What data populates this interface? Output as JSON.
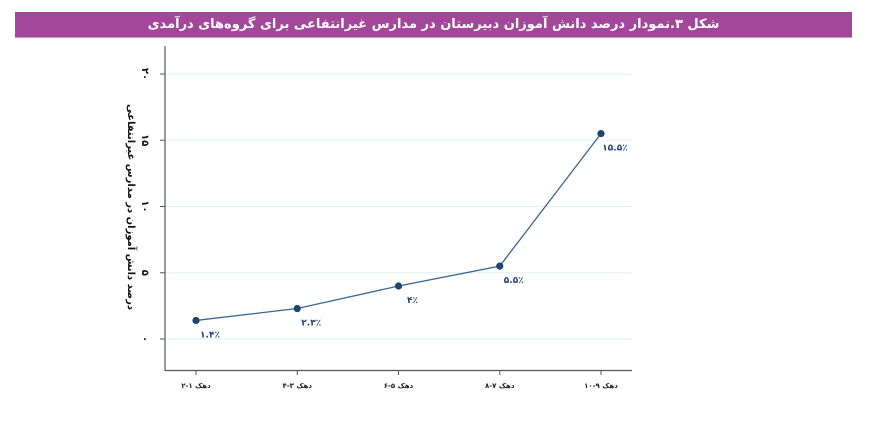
{
  "title": "شکل ۳.نمودار درصد دانش آموزان دبیرستان در مدارس غیرانتفاعی برای گروه‌های درآمدی",
  "colors": {
    "title_bar": "#a2479a",
    "line": "#3b6591",
    "marker": "#1d4570",
    "gridline": "#e3eef0",
    "axis": "#555555"
  },
  "chart_data": {
    "type": "line",
    "title": "شکل ۳.نمودار درصد دانش آموزان دبیرستان در مدارس غیرانتفاعی برای گروه‌های درآمدی",
    "xlabel": "",
    "ylabel": "درصد دانش آموزان در مدارس غیرانتفاعی",
    "categories": [
      "دهک ۱-۲",
      "دهک ۳-۴",
      "دهک ۵-۶",
      "دهک ۷-۸",
      "دهک ۹-۱۰"
    ],
    "values": [
      1.4,
      2.3,
      4,
      5.5,
      15.5
    ],
    "data_labels": [
      "۱.۴٪",
      "۲.۳٪",
      "۴٪",
      "۵.۵٪",
      "۱۵.۵٪"
    ],
    "ylim": [
      0,
      20
    ],
    "yticks": [
      0,
      5,
      10,
      15,
      20
    ],
    "ytick_labels": [
      "۰",
      "۵",
      "۱۰",
      "۱۵",
      "۲۰"
    ],
    "grid": true,
    "legend": null
  }
}
